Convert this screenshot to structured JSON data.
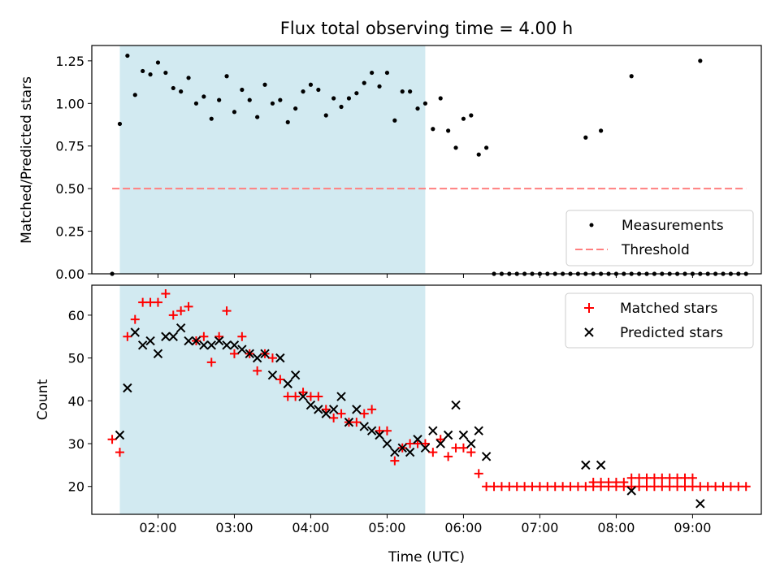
{
  "chart_data": [
    {
      "type": "scatter",
      "title": "Flux total observing time = 4.00 h",
      "xlabel": "",
      "ylabel": "Matched/Predicted stars",
      "xlim": [
        "01:08",
        "09:54"
      ],
      "ylim": [
        0,
        1.34
      ],
      "x_ticks": [
        "02:00",
        "03:00",
        "04:00",
        "05:00",
        "06:00",
        "07:00",
        "08:00",
        "09:00"
      ],
      "y_ticks": [
        "0.00",
        "0.25",
        "0.50",
        "0.75",
        "1.00",
        "1.25"
      ],
      "shaded_interval": {
        "start": "01:30",
        "end": "05:30",
        "color": "#add8e6"
      },
      "legend": {
        "position": "lower right",
        "entries": [
          "Measurements",
          "Threshold"
        ]
      },
      "series": [
        {
          "name": "Measurements",
          "color": "#000000",
          "marker": "dot",
          "points": [
            [
              "01:24",
              0.0
            ],
            [
              "01:30",
              0.88
            ],
            [
              "01:36",
              1.28
            ],
            [
              "01:42",
              1.05
            ],
            [
              "01:48",
              1.19
            ],
            [
              "01:54",
              1.17
            ],
            [
              "02:00",
              1.24
            ],
            [
              "02:06",
              1.18
            ],
            [
              "02:12",
              1.09
            ],
            [
              "02:18",
              1.07
            ],
            [
              "02:24",
              1.15
            ],
            [
              "02:30",
              1.0
            ],
            [
              "02:36",
              1.04
            ],
            [
              "02:42",
              0.91
            ],
            [
              "02:48",
              1.02
            ],
            [
              "02:54",
              1.16
            ],
            [
              "03:00",
              0.95
            ],
            [
              "03:06",
              1.08
            ],
            [
              "03:12",
              1.02
            ],
            [
              "03:18",
              0.92
            ],
            [
              "03:24",
              1.11
            ],
            [
              "03:30",
              1.0
            ],
            [
              "03:36",
              1.02
            ],
            [
              "03:42",
              0.89
            ],
            [
              "03:48",
              0.97
            ],
            [
              "03:54",
              1.07
            ],
            [
              "04:00",
              1.11
            ],
            [
              "04:06",
              1.08
            ],
            [
              "04:12",
              0.93
            ],
            [
              "04:18",
              1.03
            ],
            [
              "04:24",
              0.98
            ],
            [
              "04:30",
              1.03
            ],
            [
              "04:36",
              1.06
            ],
            [
              "04:42",
              1.12
            ],
            [
              "04:48",
              1.18
            ],
            [
              "04:54",
              1.1
            ],
            [
              "05:00",
              1.18
            ],
            [
              "05:06",
              0.9
            ],
            [
              "05:12",
              1.07
            ],
            [
              "05:18",
              1.07
            ],
            [
              "05:24",
              0.97
            ],
            [
              "05:30",
              1.0
            ],
            [
              "05:36",
              0.85
            ],
            [
              "05:42",
              1.03
            ],
            [
              "05:48",
              0.84
            ],
            [
              "05:54",
              0.74
            ],
            [
              "06:00",
              0.91
            ],
            [
              "06:06",
              0.93
            ],
            [
              "06:12",
              0.7
            ],
            [
              "06:18",
              0.74
            ],
            [
              "06:24",
              0.0
            ],
            [
              "06:30",
              0.0
            ],
            [
              "06:36",
              0.0
            ],
            [
              "06:42",
              0.0
            ],
            [
              "06:48",
              0.0
            ],
            [
              "06:54",
              0.0
            ],
            [
              "07:00",
              0.0
            ],
            [
              "07:06",
              0.0
            ],
            [
              "07:12",
              0.0
            ],
            [
              "07:18",
              0.0
            ],
            [
              "07:24",
              0.0
            ],
            [
              "07:30",
              0.0
            ],
            [
              "07:36",
              0.0
            ],
            [
              "07:42",
              0.0
            ],
            [
              "07:48",
              0.0
            ],
            [
              "07:54",
              0.0
            ],
            [
              "08:00",
              0.0
            ],
            [
              "08:06",
              0.0
            ],
            [
              "08:12",
              0.0
            ],
            [
              "08:18",
              0.0
            ],
            [
              "08:24",
              0.0
            ],
            [
              "08:30",
              0.0
            ],
            [
              "08:36",
              0.0
            ],
            [
              "08:42",
              0.0
            ],
            [
              "08:48",
              0.0
            ],
            [
              "08:54",
              0.0
            ],
            [
              "09:00",
              0.0
            ],
            [
              "09:06",
              0.0
            ],
            [
              "09:12",
              0.0
            ],
            [
              "09:18",
              0.0
            ],
            [
              "09:24",
              0.0
            ],
            [
              "07:36",
              0.8
            ],
            [
              "07:48",
              0.84
            ],
            [
              "08:12",
              1.16
            ],
            [
              "09:06",
              1.25
            ],
            [
              "09:30",
              0.0
            ],
            [
              "09:36",
              0.0
            ],
            [
              "09:42",
              0.0
            ]
          ]
        },
        {
          "name": "Threshold",
          "color": "#ff7f7f",
          "style": "dashed",
          "points": [
            [
              "01:24",
              0.5
            ],
            [
              "09:42",
              0.5
            ]
          ]
        }
      ]
    },
    {
      "type": "scatter",
      "title": "",
      "xlabel": "Time (UTC)",
      "ylabel": "Count",
      "xlim": [
        "01:08",
        "09:54"
      ],
      "ylim": [
        13.5,
        67
      ],
      "x_ticks": [
        "02:00",
        "03:00",
        "04:00",
        "05:00",
        "06:00",
        "07:00",
        "08:00",
        "09:00"
      ],
      "y_ticks": [
        "20",
        "30",
        "40",
        "50",
        "60"
      ],
      "shaded_interval": {
        "start": "01:30",
        "end": "05:30",
        "color": "#add8e6"
      },
      "legend": {
        "position": "upper right",
        "entries": [
          "Matched stars",
          "Predicted stars"
        ]
      },
      "series": [
        {
          "name": "Matched stars",
          "color": "#ff0000",
          "marker": "plus",
          "points": [
            [
              "01:24",
              31
            ],
            [
              "01:30",
              28
            ],
            [
              "01:36",
              55
            ],
            [
              "01:42",
              59
            ],
            [
              "01:48",
              63
            ],
            [
              "01:54",
              63
            ],
            [
              "02:00",
              63
            ],
            [
              "02:06",
              65
            ],
            [
              "02:12",
              60
            ],
            [
              "02:18",
              61
            ],
            [
              "02:24",
              62
            ],
            [
              "02:30",
              54
            ],
            [
              "02:36",
              55
            ],
            [
              "02:42",
              49
            ],
            [
              "02:48",
              55
            ],
            [
              "02:54",
              61
            ],
            [
              "03:00",
              51
            ],
            [
              "03:06",
              55
            ],
            [
              "03:12",
              51
            ],
            [
              "03:18",
              47
            ],
            [
              "03:24",
              51
            ],
            [
              "03:30",
              50
            ],
            [
              "03:36",
              45
            ],
            [
              "03:42",
              41
            ],
            [
              "03:48",
              41
            ],
            [
              "03:54",
              42
            ],
            [
              "04:00",
              41
            ],
            [
              "04:06",
              41
            ],
            [
              "04:12",
              38
            ],
            [
              "04:18",
              36
            ],
            [
              "04:24",
              37
            ],
            [
              "04:30",
              35
            ],
            [
              "04:36",
              35
            ],
            [
              "04:42",
              37
            ],
            [
              "04:48",
              38
            ],
            [
              "04:54",
              33
            ],
            [
              "05:00",
              33
            ],
            [
              "05:06",
              26
            ],
            [
              "05:12",
              29
            ],
            [
              "05:18",
              30
            ],
            [
              "05:24",
              30
            ],
            [
              "05:30",
              30
            ],
            [
              "05:36",
              28
            ],
            [
              "05:42",
              31
            ],
            [
              "05:48",
              27
            ],
            [
              "05:54",
              29
            ],
            [
              "06:00",
              29
            ],
            [
              "06:06",
              28
            ],
            [
              "06:12",
              23
            ],
            [
              "06:18",
              20
            ],
            [
              "06:24",
              20
            ],
            [
              "06:30",
              20
            ],
            [
              "06:36",
              20
            ],
            [
              "06:42",
              20
            ],
            [
              "06:48",
              20
            ],
            [
              "06:54",
              20
            ],
            [
              "07:00",
              20
            ],
            [
              "07:06",
              20
            ],
            [
              "07:12",
              20
            ],
            [
              "07:18",
              20
            ],
            [
              "07:24",
              20
            ],
            [
              "07:30",
              20
            ],
            [
              "07:36",
              20
            ],
            [
              "07:42",
              20
            ],
            [
              "07:48",
              20
            ],
            [
              "07:54",
              20
            ],
            [
              "08:00",
              20
            ],
            [
              "08:06",
              20
            ],
            [
              "08:12",
              20
            ],
            [
              "08:18",
              20
            ],
            [
              "08:24",
              20
            ],
            [
              "08:30",
              20
            ],
            [
              "08:36",
              20
            ],
            [
              "08:42",
              20
            ],
            [
              "08:48",
              20
            ],
            [
              "08:54",
              20
            ],
            [
              "09:00",
              20
            ],
            [
              "09:06",
              20
            ],
            [
              "09:12",
              20
            ],
            [
              "09:18",
              20
            ],
            [
              "09:24",
              20
            ],
            [
              "07:42",
              21
            ],
            [
              "07:48",
              21
            ],
            [
              "07:54",
              21
            ],
            [
              "08:00",
              21
            ],
            [
              "08:06",
              21
            ],
            [
              "08:12",
              22
            ],
            [
              "08:18",
              22
            ],
            [
              "08:24",
              22
            ],
            [
              "08:30",
              22
            ],
            [
              "08:36",
              22
            ],
            [
              "08:42",
              22
            ],
            [
              "08:48",
              22
            ],
            [
              "08:54",
              22
            ],
            [
              "09:00",
              22
            ],
            [
              "09:30",
              20
            ],
            [
              "09:36",
              20
            ],
            [
              "09:42",
              20
            ]
          ]
        },
        {
          "name": "Predicted stars",
          "color": "#000000",
          "marker": "x",
          "points": [
            [
              "01:30",
              32
            ],
            [
              "01:36",
              43
            ],
            [
              "01:42",
              56
            ],
            [
              "01:48",
              53
            ],
            [
              "01:54",
              54
            ],
            [
              "02:00",
              51
            ],
            [
              "02:06",
              55
            ],
            [
              "02:12",
              55
            ],
            [
              "02:18",
              57
            ],
            [
              "02:24",
              54
            ],
            [
              "02:30",
              54
            ],
            [
              "02:36",
              53
            ],
            [
              "02:42",
              53
            ],
            [
              "02:48",
              54
            ],
            [
              "02:54",
              53
            ],
            [
              "03:00",
              53
            ],
            [
              "03:06",
              52
            ],
            [
              "03:12",
              51
            ],
            [
              "03:18",
              50
            ],
            [
              "03:24",
              51
            ],
            [
              "03:30",
              46
            ],
            [
              "03:36",
              50
            ],
            [
              "03:42",
              44
            ],
            [
              "03:48",
              46
            ],
            [
              "03:54",
              41
            ],
            [
              "04:00",
              39
            ],
            [
              "04:06",
              38
            ],
            [
              "04:12",
              37
            ],
            [
              "04:18",
              38
            ],
            [
              "04:24",
              41
            ],
            [
              "04:30",
              35
            ],
            [
              "04:36",
              38
            ],
            [
              "04:42",
              34
            ],
            [
              "04:48",
              33
            ],
            [
              "04:54",
              32
            ],
            [
              "05:00",
              30
            ],
            [
              "05:06",
              28
            ],
            [
              "05:12",
              29
            ],
            [
              "05:18",
              28
            ],
            [
              "05:24",
              31
            ],
            [
              "05:30",
              29
            ],
            [
              "05:36",
              33
            ],
            [
              "05:42",
              30
            ],
            [
              "05:48",
              32
            ],
            [
              "05:54",
              39
            ],
            [
              "06:00",
              32
            ],
            [
              "06:06",
              30
            ],
            [
              "06:12",
              33
            ],
            [
              "06:18",
              27
            ],
            [
              "07:36",
              25
            ],
            [
              "07:48",
              25
            ],
            [
              "08:12",
              19
            ],
            [
              "09:06",
              16
            ]
          ]
        }
      ]
    }
  ]
}
